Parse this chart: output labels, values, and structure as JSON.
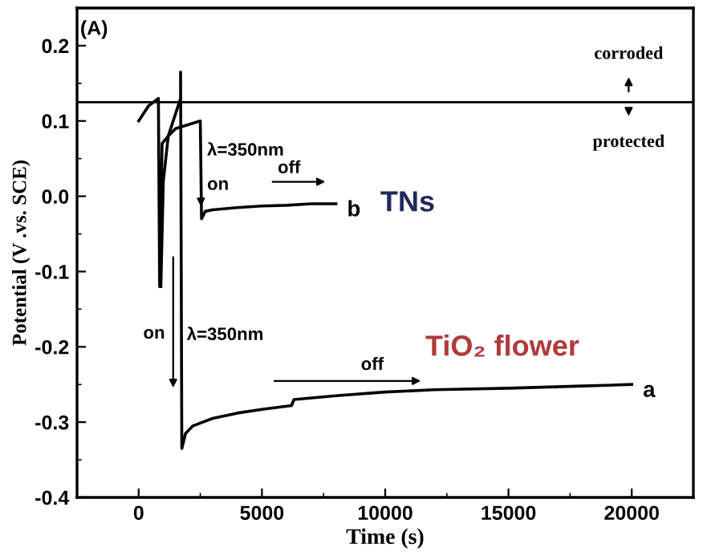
{
  "chart_data": {
    "type": "line",
    "xlabel": "Time (s)",
    "ylabel": "Potential (V .vs. SCE)",
    "xlim": [
      -2500,
      22500
    ],
    "ylim": [
      -0.4,
      0.25
    ],
    "xticks": [
      0,
      5000,
      10000,
      15000,
      20000
    ],
    "yticks": [
      -0.4,
      -0.3,
      -0.2,
      -0.1,
      {
        "value": 0,
        "label": "0.0"
      },
      0.1,
      0.2
    ],
    "grid": false,
    "legend": false,
    "marker": "none",
    "line_style": "solid",
    "ref_lines": [
      {
        "axis": "y",
        "value": 0.125,
        "color": "#000000"
      }
    ],
    "series": [
      {
        "name": "b",
        "color": "#000000",
        "x": [
          0,
          400,
          800,
          850,
          950,
          1200,
          1500,
          2000,
          2500,
          2550,
          2700,
          3000,
          4000,
          5000,
          6000,
          7000,
          8000
        ],
        "values": [
          0.1,
          0.12,
          0.13,
          -0.12,
          0.07,
          0.08,
          0.09,
          0.095,
          0.1,
          -0.03,
          -0.02,
          -0.018,
          -0.015,
          -0.013,
          -0.012,
          -0.01,
          -0.01
        ]
      },
      {
        "name": "a",
        "color": "#000000",
        "x": [
          900,
          1000,
          1200,
          1500,
          1700,
          1700,
          1750,
          1900,
          2200,
          3000,
          4000,
          5000,
          6200,
          6300,
          8000,
          10000,
          12000,
          15000,
          18000,
          20000
        ],
        "values": [
          -0.12,
          0.02,
          0.08,
          0.11,
          0.13,
          0.165,
          -0.335,
          -0.315,
          -0.305,
          -0.295,
          -0.288,
          -0.283,
          -0.278,
          -0.27,
          -0.265,
          -0.26,
          -0.257,
          -0.255,
          -0.252,
          -0.25
        ]
      }
    ],
    "annotations": [
      "(A)",
      "corroded",
      "protected",
      "λ=350nm",
      "on",
      "off",
      "TNs",
      "on",
      "λ=350nm",
      "off",
      "TiO₂ flower"
    ]
  }
}
